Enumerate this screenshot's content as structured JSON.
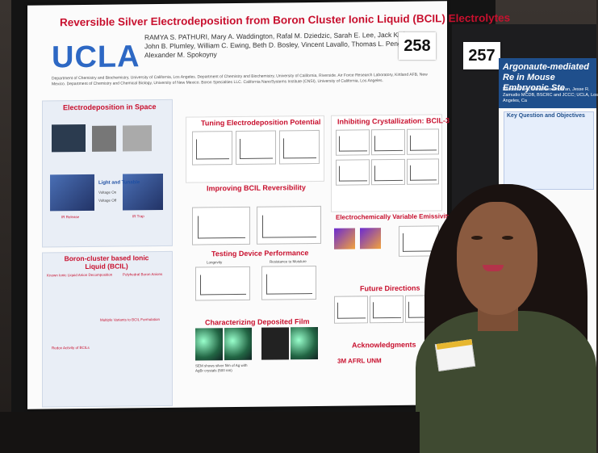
{
  "poster": {
    "title": "Reversible Silver Electrodeposition from Boron Cluster Ionic Liquid (BCIL) Electrolytes",
    "logo": "UCLA",
    "authors": "RAMYA S. PATHURI, Mary A. Waddington, Rafal M. Dziedzic, Sarah E. Lee, Jack Kleinsasser, John B. Plumley, William C. Ewing, Beth D. Bosley, Vincent Lavallo, Thomas L. Peng, and Alexander M. Spokoyny",
    "affiliations": "Department of Chemistry and Biochemistry, University of California, Los Angeles. Department of Chemistry and Biochemistry, University of California, Riverside. Air Force Research Laboratory, Kirtland AFB, New Mexico. Department of Chemistry and Chemical Biology, University of New Mexico. Boron Specialties LLC. California NanoSystems Institute (CNSI), University of California, Los Angeles.",
    "sections": {
      "electrodeposition": "Electrodeposition in Space",
      "boron_cluster": "Boron-cluster based Ionic Liquid (BCIL)",
      "tuning": "Tuning Electrodeposition Potential",
      "reversibility": "Improving BCIL Reversibility",
      "testing": "Testing Device Performance",
      "film": "Characterizing Deposited Film",
      "inhibiting": "Inhibiting Crystallization: BCIL-3",
      "emissivity": "Electrochemically Variable Emissivity",
      "future": "Future Directions",
      "acknowledgments": "Acknowledgments"
    },
    "labels": {
      "light_tunable": "Light and Tunable",
      "voltage_on": "Voltage On",
      "voltage_off": "Voltage Off",
      "ir_release": "IR Release",
      "ir_trap": "IR Trap",
      "known_decomp": "Known Ionic Liquid Anion Decomposition",
      "polyhedral": "Polyhedral Boron Anions",
      "multiple_variants": "Multiple Variants to BCIL Formulation",
      "redox_activity": "Redox Activity of BCILs",
      "longevity": "Longevity",
      "resistance": "Resistance to Moisture",
      "sem_caption": "SEM shows silver film of Ag with AgBr crystals (500 nm)",
      "logos": "3M  AFRL  UNM"
    }
  },
  "number_cards": {
    "left": "258",
    "right": "257"
  },
  "poster2": {
    "title": "Argonaute-mediated Re in Mouse Embryonic Ste",
    "authors": "Vandan Patel, Nima Hoooshdaran, Jesse R. Zamudio MCDB, BSCRC and JCCC; UCLA, Los Angeles, Ca",
    "key_question": "Key Question and Objectives"
  },
  "colors": {
    "poster_title": "#c8102e",
    "ucla_blue": "#2d68c4",
    "poster2_header": "#1f4f8c",
    "dress": "#3f4a31"
  }
}
